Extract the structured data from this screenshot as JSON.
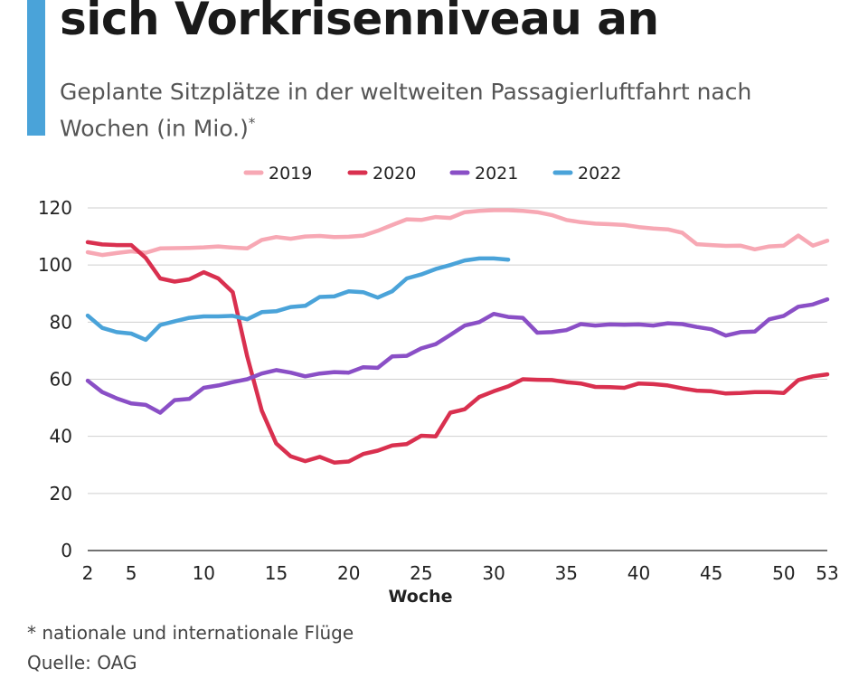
{
  "header": {
    "title": "sich Vorkrisenniveau an",
    "subtitle": "Geplante Sitzplätze in der weltweiten Passagierluftfahrt nach Wochen (in Mio.)",
    "subtitle_marker": "*"
  },
  "footer": {
    "footnote": "* nationale und internationale Flüge",
    "source": "Quelle: OAG"
  },
  "colors": {
    "accent": "#4aa3d9",
    "s2019": "#f7a8b4",
    "s2020": "#d9304f",
    "s2021": "#8a4fc6",
    "s2022": "#4aa3d9"
  },
  "chart_data": {
    "type": "line",
    "xlabel": "Woche",
    "ylabel": "",
    "xlim": [
      2,
      53
    ],
    "ylim": [
      0,
      120
    ],
    "xticks": [
      2,
      5,
      10,
      15,
      20,
      25,
      30,
      35,
      40,
      45,
      50,
      53
    ],
    "yticks": [
      0,
      20,
      40,
      60,
      80,
      100,
      120
    ],
    "grid": true,
    "legend_position": "top-center",
    "series": [
      {
        "name": "2019",
        "color": "#f7a8b4",
        "x": [
          2,
          3,
          4,
          5,
          6,
          7,
          8,
          9,
          10,
          11,
          12,
          13,
          14,
          15,
          16,
          17,
          18,
          19,
          20,
          21,
          22,
          23,
          24,
          25,
          26,
          27,
          28,
          29,
          30,
          31,
          32,
          33,
          34,
          35,
          36,
          37,
          38,
          39,
          40,
          41,
          42,
          43,
          44,
          45,
          46,
          47,
          48,
          49,
          50,
          51,
          52,
          53
        ],
        "y": [
          104.5,
          103.5,
          104.2,
          104.8,
          104.3,
          105.8,
          105.9,
          106,
          106.2,
          106.5,
          106.1,
          105.8,
          108.8,
          109.8,
          109.2,
          110,
          110.2,
          109.8,
          109.9,
          110.3,
          112,
          114,
          116,
          115.8,
          116.8,
          116.5,
          118.5,
          119,
          119.2,
          119.2,
          119,
          118.5,
          117.5,
          115.8,
          115,
          114.5,
          114.3,
          114,
          113.3,
          112.8,
          112.5,
          111.3,
          107.3,
          107,
          106.7,
          106.8,
          105.5,
          106.5,
          106.8,
          110.3,
          106.8,
          108.5
        ]
      },
      {
        "name": "2020",
        "color": "#d9304f",
        "x": [
          2,
          3,
          4,
          5,
          6,
          7,
          8,
          9,
          10,
          11,
          12,
          13,
          14,
          15,
          16,
          17,
          18,
          19,
          20,
          21,
          22,
          23,
          24,
          25,
          26,
          27,
          28,
          29,
          30,
          31,
          32,
          33,
          34,
          35,
          36,
          37,
          38,
          39,
          40,
          41,
          42,
          43,
          44,
          45,
          46,
          47,
          48,
          49,
          50,
          51,
          52,
          53
        ],
        "y": [
          108,
          107.2,
          107,
          107,
          102.5,
          95.3,
          94.2,
          95,
          97.5,
          95.3,
          90.5,
          68,
          49,
          37.5,
          33,
          31.3,
          32.8,
          30.8,
          31.2,
          33.8,
          35,
          36.8,
          37.3,
          40.2,
          40,
          48.3,
          49.5,
          53.8,
          55.8,
          57.5,
          60,
          59.8,
          59.7,
          59,
          58.5,
          57.3,
          57.2,
          57,
          58.5,
          58.3,
          57.8,
          56.8,
          56,
          55.8,
          55,
          55.2,
          55.5,
          55.5,
          55.2,
          59.7,
          61,
          61.7
        ]
      },
      {
        "name": "2021",
        "color": "#8a4fc6",
        "x": [
          2,
          3,
          4,
          5,
          6,
          7,
          8,
          9,
          10,
          11,
          12,
          13,
          14,
          15,
          16,
          17,
          18,
          19,
          20,
          21,
          22,
          23,
          24,
          25,
          26,
          27,
          28,
          29,
          30,
          31,
          32,
          33,
          34,
          35,
          36,
          37,
          38,
          39,
          40,
          41,
          42,
          43,
          44,
          45,
          46,
          47,
          48,
          49,
          50,
          51,
          52,
          53
        ],
        "y": [
          59.5,
          55.5,
          53.3,
          51.5,
          51,
          48.3,
          52.7,
          53.1,
          57,
          57.8,
          59,
          60,
          62,
          63.2,
          62.3,
          61,
          62,
          62.5,
          62.3,
          64.2,
          64,
          68,
          68.2,
          70.8,
          72.3,
          75.5,
          78.8,
          80,
          82.9,
          81.8,
          81.5,
          76.3,
          76.5,
          77.2,
          79.3,
          78.8,
          79.2,
          79.1,
          79.2,
          78.8,
          79.6,
          79.3,
          78.3,
          77.5,
          75.3,
          76.5,
          76.7,
          81,
          82.2,
          85.4,
          86.2,
          88
        ]
      },
      {
        "name": "2022",
        "color": "#4aa3d9",
        "x": [
          2,
          3,
          4,
          5,
          6,
          7,
          8,
          9,
          10,
          11,
          12,
          13,
          14,
          15,
          16,
          17,
          18,
          19,
          20,
          21,
          22,
          23,
          24,
          25,
          26,
          27,
          28,
          29,
          30,
          31
        ],
        "y": [
          82.3,
          78,
          76.5,
          76,
          73.8,
          79,
          80.3,
          81.5,
          82,
          82,
          82.2,
          81,
          83.5,
          83.8,
          85.3,
          85.7,
          88.8,
          89,
          90.8,
          90.5,
          88.6,
          90.8,
          95.3,
          96.7,
          98.6,
          100,
          101.6,
          102.3,
          102.3,
          101.9
        ]
      }
    ]
  }
}
